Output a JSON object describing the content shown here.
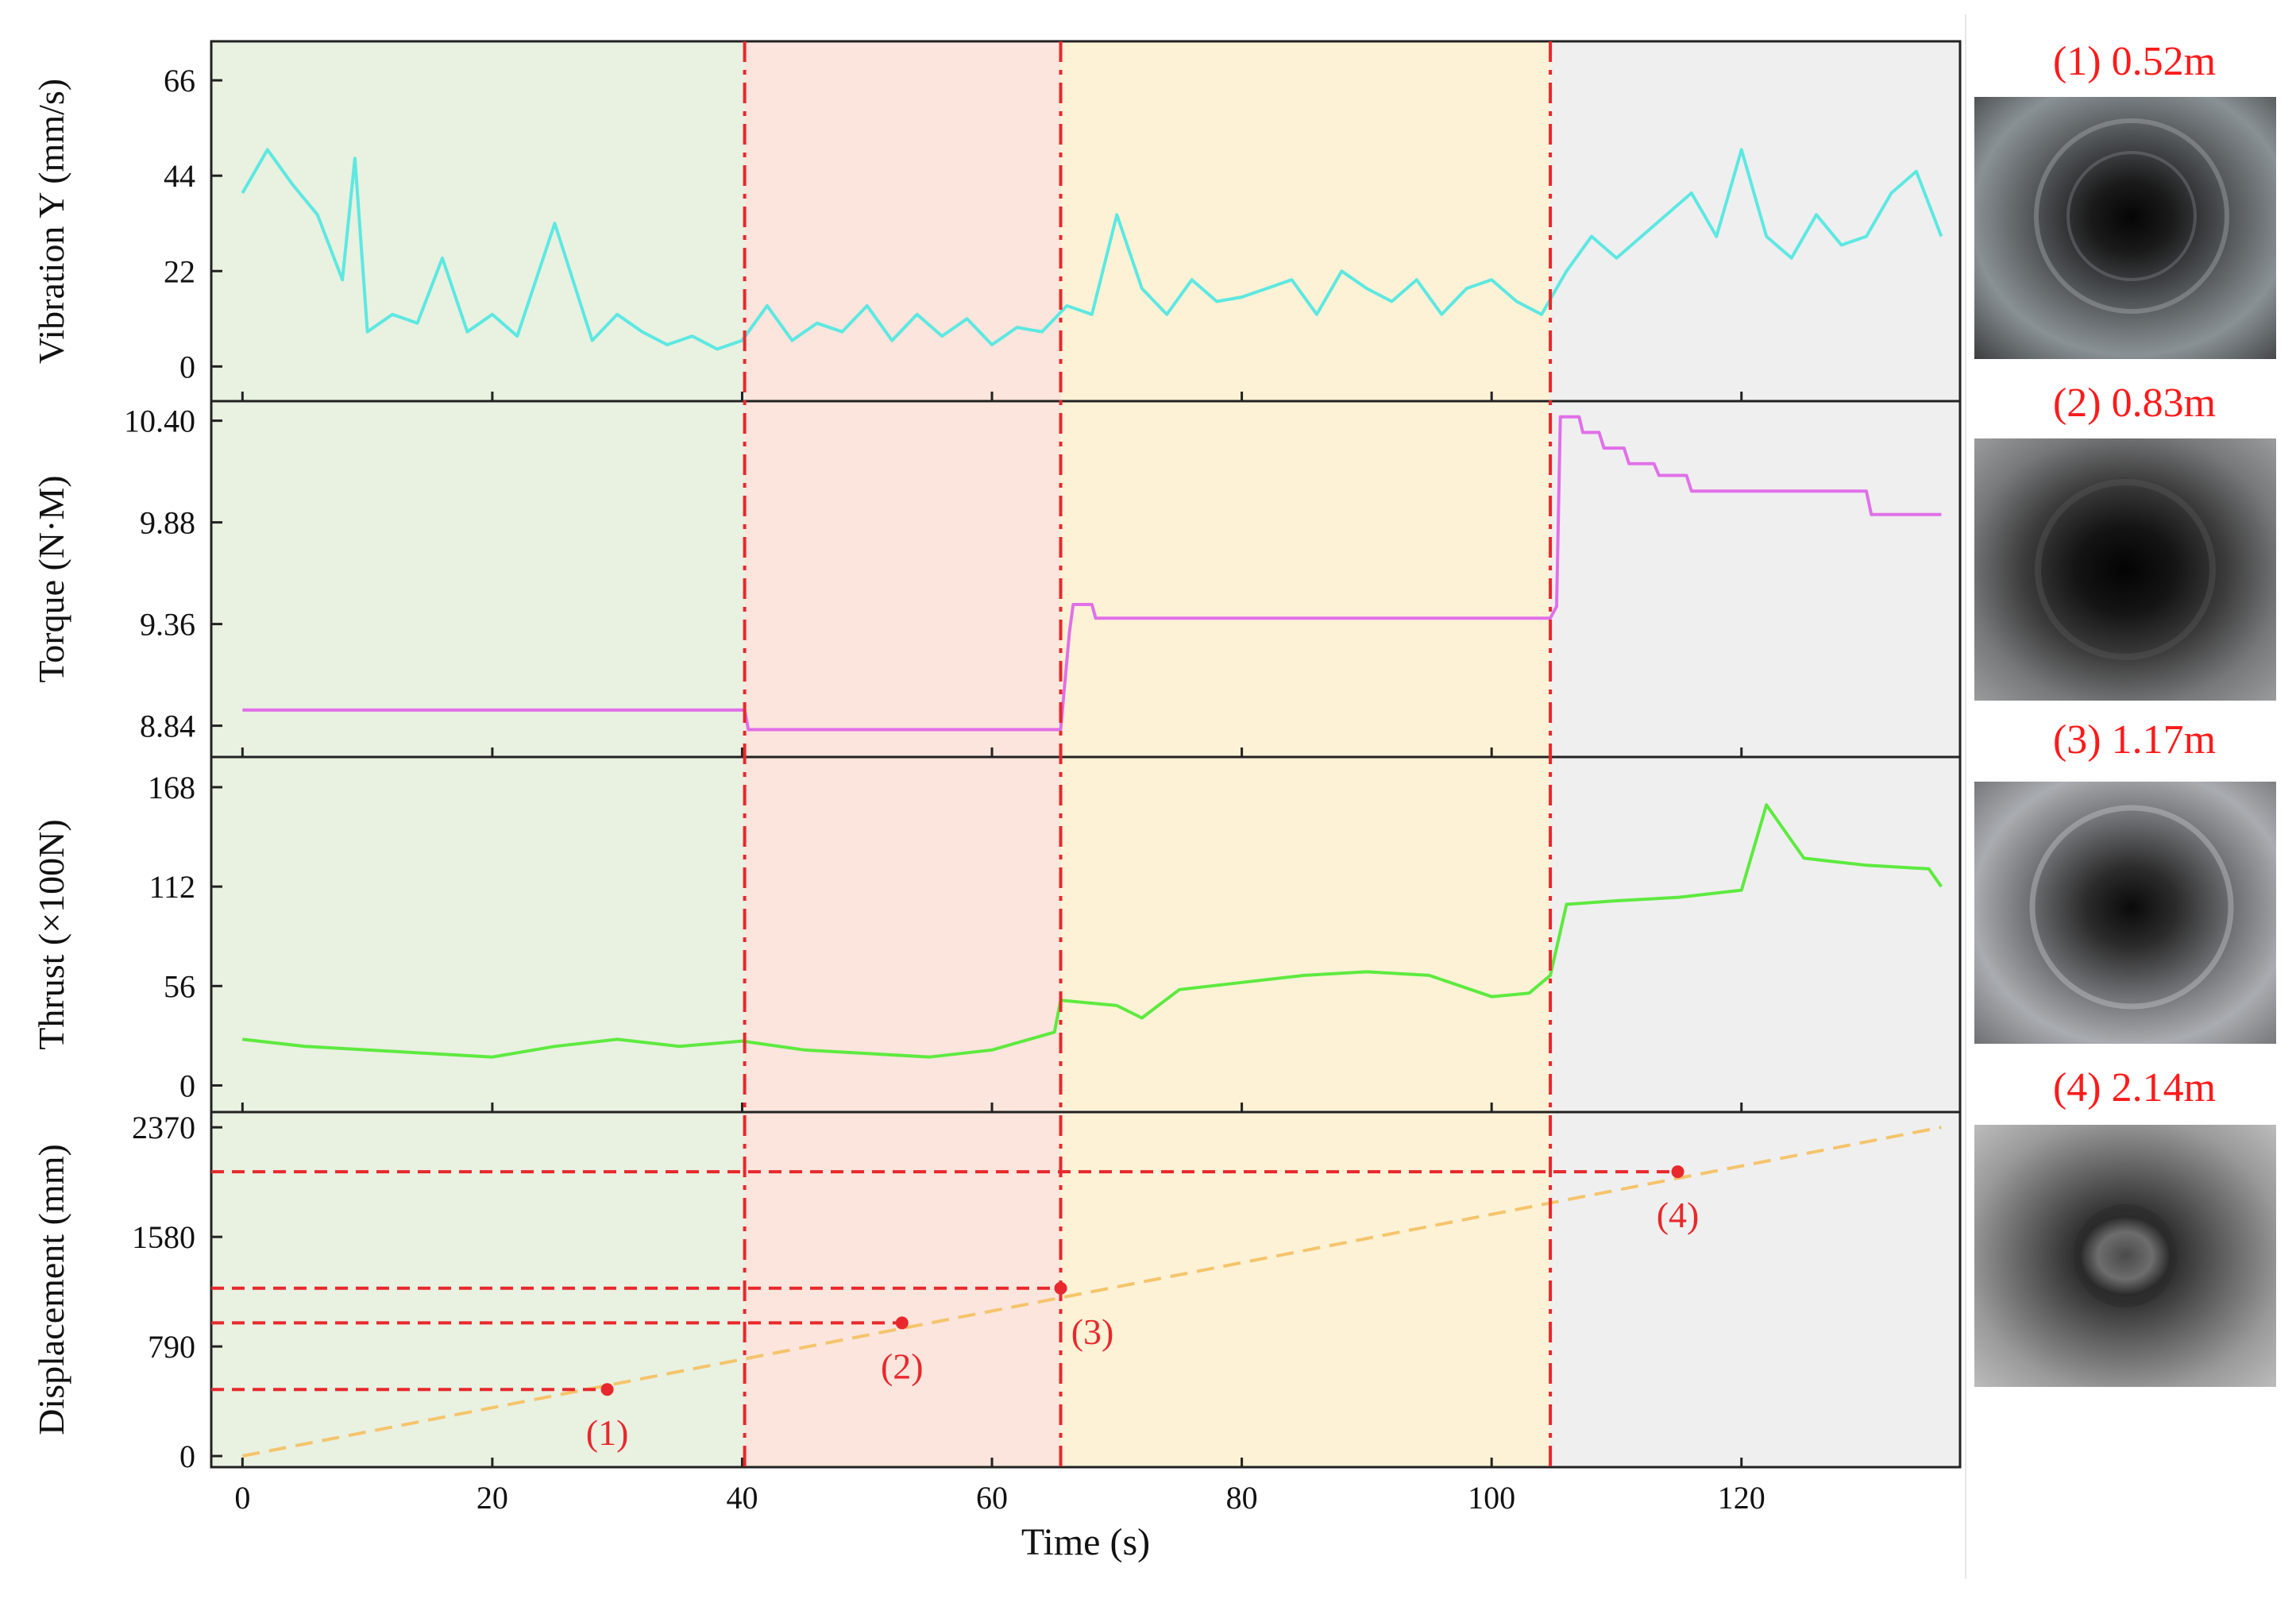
{
  "chart_data": {
    "type": "line",
    "x_axis": {
      "label": "Time (s)",
      "range": [
        -2.5,
        137.5
      ],
      "ticks": [
        0,
        20,
        40,
        60,
        80,
        100,
        120
      ]
    },
    "phase_boundaries_s": [
      40.2,
      65.5,
      104.7
    ],
    "phase_colors": [
      "#e9f1e1",
      "#fbe5dc",
      "#fdf2d6",
      "#efefef"
    ],
    "boundary_color": "#e8282c",
    "panels": [
      {
        "ylabel": "Vibration Y (mm/s)",
        "ylim": [
          -8,
          75
        ],
        "yticks": [
          "66",
          "44",
          "22",
          "0"
        ],
        "ytick_values": [
          66,
          44,
          22,
          0
        ],
        "color": "#5de8e2",
        "series_name": "Vibration Y",
        "x": [
          0,
          2,
          4,
          6,
          8,
          9,
          10,
          12,
          14,
          16,
          18,
          20,
          22,
          25,
          28,
          30,
          32,
          34,
          36,
          38,
          40,
          42,
          44,
          46,
          48,
          50,
          52,
          54,
          56,
          58,
          60,
          62,
          64,
          66,
          68,
          70,
          72,
          74,
          76,
          78,
          80,
          82,
          84,
          86,
          88,
          90,
          92,
          94,
          96,
          98,
          100,
          102,
          104,
          106,
          108,
          110,
          112,
          114,
          116,
          118,
          120,
          122,
          124,
          126,
          128,
          130,
          132,
          134,
          136
        ],
        "values": [
          40,
          50,
          42,
          35,
          20,
          48,
          8,
          12,
          10,
          25,
          8,
          12,
          7,
          33,
          6,
          12,
          8,
          5,
          7,
          4,
          6,
          14,
          6,
          10,
          8,
          14,
          6,
          12,
          7,
          11,
          5,
          9,
          8,
          14,
          12,
          35,
          18,
          12,
          20,
          15,
          16,
          18,
          20,
          12,
          22,
          18,
          15,
          20,
          12,
          18,
          20,
          15,
          12,
          22,
          30,
          25,
          30,
          35,
          40,
          30,
          50,
          30,
          25,
          35,
          28,
          30,
          40,
          45,
          30
        ]
      },
      {
        "ylabel": "Torque (N·M)",
        "ylim": [
          8.68,
          10.5
        ],
        "yticks": [
          "10.40",
          "9.88",
          "9.36",
          "8.84"
        ],
        "ytick_values": [
          10.4,
          9.88,
          9.36,
          8.84
        ],
        "color": "#e070e8",
        "series_name": "Torque",
        "x": [
          0,
          40.2,
          40.5,
          65.5,
          66.2,
          66.5,
          68.0,
          68.3,
          104.7,
          105.2,
          105.5,
          107.0,
          107.3,
          108.6,
          109.0,
          110.6,
          111.0,
          113.0,
          113.4,
          115.6,
          116.0,
          117.5,
          118.0,
          130.0,
          130.4,
          136.0
        ],
        "values": [
          8.92,
          8.92,
          8.82,
          8.82,
          9.32,
          9.46,
          9.46,
          9.39,
          9.39,
          9.45,
          10.42,
          10.42,
          10.34,
          10.34,
          10.26,
          10.26,
          10.18,
          10.18,
          10.12,
          10.12,
          10.04,
          10.04,
          10.04,
          10.04,
          9.92,
          9.92
        ]
      },
      {
        "ylabel": "Thrust (×100N)",
        "ylim": [
          -15,
          185
        ],
        "yticks": [
          "168",
          "112",
          "56",
          "0"
        ],
        "ytick_values": [
          168,
          112,
          56,
          0
        ],
        "color": "#5dea3f",
        "series_name": "Thrust",
        "x": [
          0,
          5,
          10,
          15,
          20,
          25,
          30,
          35,
          40,
          45,
          50,
          55,
          60,
          65,
          65.5,
          70,
          72,
          75,
          80,
          85,
          90,
          95,
          100,
          103,
          104.7,
          106,
          110,
          115,
          120,
          122,
          125,
          130,
          135,
          136
        ],
        "values": [
          26,
          22,
          20,
          18,
          16,
          22,
          26,
          22,
          25,
          20,
          18,
          16,
          20,
          30,
          48,
          45,
          38,
          54,
          58,
          62,
          64,
          62,
          50,
          52,
          62,
          102,
          104,
          106,
          110,
          158,
          128,
          124,
          122,
          112
        ]
      },
      {
        "ylabel": "Displacement (mm)",
        "ylim": [
          -80,
          2480
        ],
        "yticks": [
          "2370",
          "1580",
          "790",
          "0"
        ],
        "ytick_values": [
          2370,
          1580,
          790,
          0
        ],
        "color": "#f5c46b",
        "series_name": "Displacement",
        "x": [
          0,
          136
        ],
        "values": [
          0,
          2370
        ],
        "markers": [
          {
            "label": "(1)",
            "x": 29.2,
            "y": 480
          },
          {
            "label": "(2)",
            "x": 52.8,
            "y": 960
          },
          {
            "label": "(3)",
            "x": 65.5,
            "y": 1210
          },
          {
            "label": "(4)",
            "x": 114.9,
            "y": 2050
          }
        ]
      }
    ]
  },
  "photos": [
    {
      "label": "(1) 0.52m"
    },
    {
      "label": "(2) 0.83m"
    },
    {
      "label": "(3) 1.17m"
    },
    {
      "label": "(4) 2.14m"
    }
  ]
}
